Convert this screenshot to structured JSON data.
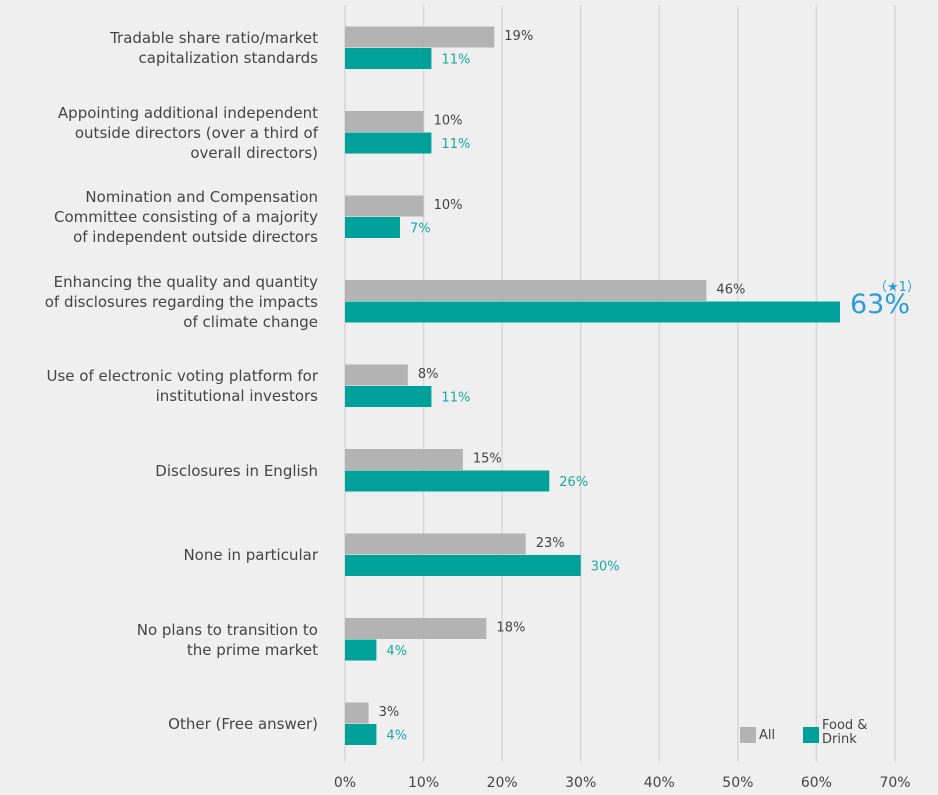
{
  "chart_data": {
    "type": "hbar",
    "categories": [
      "Tradable share ratio/market\ncapitalization standards",
      "Appointing additional independent\noutside directors (over a third of\noverall directors)",
      "Nomination and Compensation\nCommittee consisting of a majority\nof independent outside directors",
      "Enhancing the quality and quantity\nof disclosures regarding the impacts\nof climate change",
      "Use of electronic voting platform for\ninstitutional investors",
      "Disclosures in English",
      "None in particular",
      "No plans to transition to\nthe prime market",
      "Other (Free answer)"
    ],
    "series": [
      {
        "name": "All",
        "color": "#b3b3b3",
        "values": [
          19,
          10,
          10,
          46,
          8,
          15,
          23,
          18,
          3
        ],
        "value_labels": [
          "19%",
          "10%",
          "10%",
          "46%",
          "8%",
          "15%",
          "23%",
          "18%",
          "3%"
        ]
      },
      {
        "name": "Food & Drink",
        "color": "#00a19b",
        "values": [
          11,
          11,
          7,
          63,
          11,
          26,
          30,
          4,
          4
        ],
        "value_labels": [
          "11%",
          "11%",
          "7%",
          "63%",
          "11%",
          "26%",
          "30%",
          "4%",
          "4%"
        ]
      }
    ],
    "annotation": {
      "text": "（★1）",
      "series": 1,
      "index": 3
    },
    "xlim": [
      0,
      70
    ],
    "xticks": [
      {
        "value": 0,
        "label": "0%"
      },
      {
        "value": 10,
        "label": "10%"
      },
      {
        "value": 20,
        "label": "20%"
      },
      {
        "value": 30,
        "label": "30%"
      },
      {
        "value": 40,
        "label": "40%"
      },
      {
        "value": 50,
        "label": "50%"
      },
      {
        "value": 60,
        "label": "60%"
      },
      {
        "value": 70,
        "label": "70%"
      }
    ],
    "grid": true,
    "legend": "lower right"
  }
}
